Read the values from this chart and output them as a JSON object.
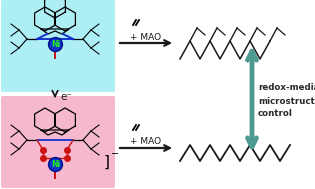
{
  "bg_color": "#ffffff",
  "top_box_color": "#aeeef5",
  "bottom_box_color": "#f5b8ce",
  "arrow_color": "#1a1a1a",
  "teal_color": "#4d9b90",
  "ni_color": "#22ee22",
  "red_color": "#cc1111",
  "blue_color": "#1133cc",
  "dark_blue": "#001188",
  "text_mao": "+ MAO",
  "text_eminus": "e⁻",
  "text_redox1": "redox-mediated",
  "text_redox2": "microstructure",
  "text_redox3": "control",
  "figw": 3.15,
  "figh": 1.89,
  "dpi": 100
}
